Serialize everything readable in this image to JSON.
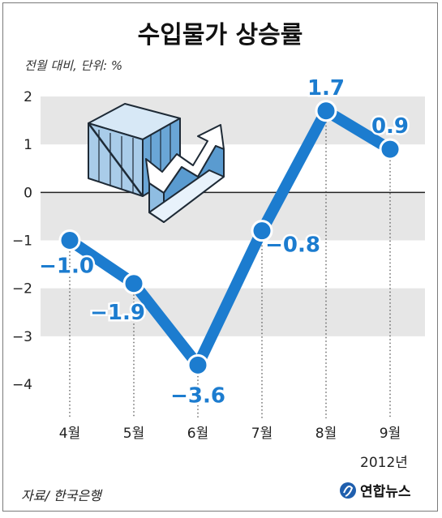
{
  "title": "수입물가 상승률",
  "unit_note": "전월 대비, 단위: %",
  "source": "자료/ 한국은행",
  "brand": "연합뉴스",
  "year_note": "2012년",
  "colors": {
    "line": "#1c7ccf",
    "band": "#e6e6e6",
    "text": "#222222"
  },
  "illustration": "cargo-box-rising-arrow-icon",
  "chart_data": {
    "type": "line",
    "categories": [
      "4월",
      "5월",
      "6월",
      "7월",
      "8월",
      "9월"
    ],
    "series": [
      {
        "values": [
          -1.0,
          -1.9,
          -3.6,
          -0.8,
          1.7,
          0.9
        ]
      }
    ],
    "data_labels": [
      "−1.0",
      "−1.9",
      "−3.6",
      "−0.8",
      "1.7",
      "0.9"
    ],
    "ylim": [
      -4,
      2
    ],
    "yticks": [
      2,
      1,
      0,
      -1,
      -2,
      -3,
      -4
    ],
    "ytick_labels": [
      "2",
      "1",
      "0",
      "−1",
      "−2",
      "−3",
      "−4"
    ],
    "grid": "alternating-bands",
    "zero_line": true
  }
}
